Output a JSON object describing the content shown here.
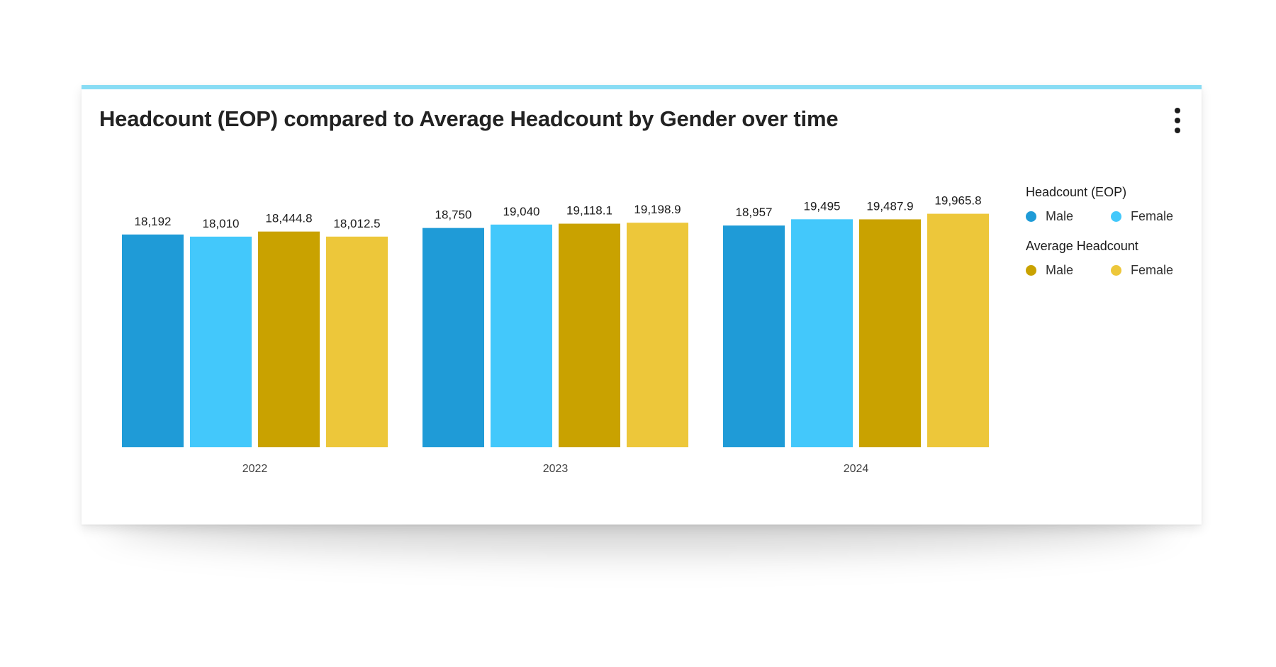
{
  "card": {
    "title": "Headcount (EOP) compared to Average Headcount by Gender over time",
    "menu_icon": "more-vertical-icon"
  },
  "colors": {
    "accent_bar": "#88dcf4",
    "eop_male": "#1f9bd7",
    "eop_female": "#43c8fb",
    "avg_male": "#c9a200",
    "avg_female": "#edc73a"
  },
  "legend": {
    "groups": [
      {
        "title": "Headcount (EOP)",
        "items": [
          {
            "label": "Male",
            "color": "#1f9bd7"
          },
          {
            "label": "Female",
            "color": "#43c8fb"
          }
        ]
      },
      {
        "title": "Average Headcount",
        "items": [
          {
            "label": "Male",
            "color": "#c9a200"
          },
          {
            "label": "Female",
            "color": "#edc73a"
          }
        ]
      }
    ]
  },
  "chart_data": {
    "type": "bar",
    "title": "Headcount (EOP) compared to Average Headcount by Gender over time",
    "categories": [
      "2022",
      "2023",
      "2024"
    ],
    "series": [
      {
        "name": "Headcount (EOP) Male",
        "color": "#1f9bd7",
        "values": [
          18192,
          18750,
          18957
        ],
        "labels": [
          "18,192",
          "18,750",
          "18,957"
        ]
      },
      {
        "name": "Headcount (EOP) Female",
        "color": "#43c8fb",
        "values": [
          18010,
          19040,
          19495
        ],
        "labels": [
          "18,010",
          "19,040",
          "19,495"
        ]
      },
      {
        "name": "Average Headcount Male",
        "color": "#c9a200",
        "values": [
          18444.8,
          19118.1,
          19487.9
        ],
        "labels": [
          "18,444.8",
          "19,118.1",
          "19,487.9"
        ]
      },
      {
        "name": "Average Headcount Female",
        "color": "#edc73a",
        "values": [
          18012.5,
          19198.9,
          19965.8
        ],
        "labels": [
          "18,012.5",
          "19,198.9",
          "19,965.8"
        ]
      }
    ],
    "ylim": [
      0,
      20000
    ],
    "grid": false,
    "y_axis_visible": false,
    "legend_position": "right",
    "data_labels": true
  }
}
